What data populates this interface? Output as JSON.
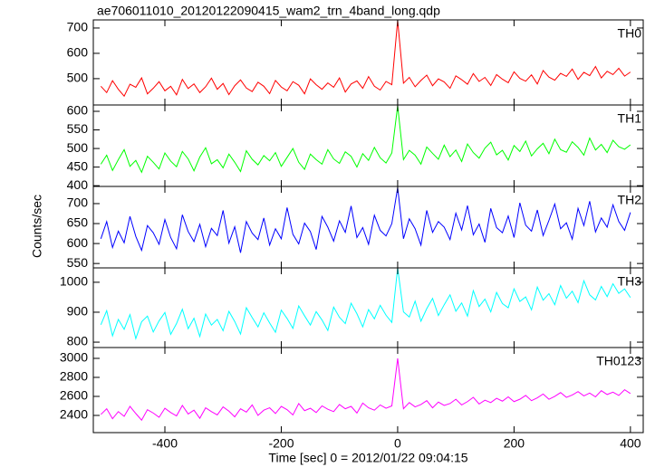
{
  "chart_data": [
    {
      "type": "line",
      "title": "ae706011010_20120122090415_wam2_trn_4band_long.qdp",
      "x": [
        -510,
        -500,
        -490,
        -480,
        -470,
        -460,
        -450,
        -440,
        -430,
        -420,
        -410,
        -400,
        -390,
        -380,
        -370,
        -360,
        -350,
        -340,
        -330,
        -320,
        -310,
        -300,
        -290,
        -280,
        -270,
        -260,
        -250,
        -240,
        -230,
        -220,
        -210,
        -200,
        -190,
        -180,
        -170,
        -160,
        -150,
        -140,
        -130,
        -120,
        -110,
        -100,
        -90,
        -80,
        -70,
        -60,
        -50,
        -40,
        -30,
        -20,
        -10,
        0,
        10,
        20,
        30,
        40,
        50,
        60,
        70,
        80,
        90,
        100,
        110,
        120,
        130,
        140,
        150,
        160,
        170,
        180,
        190,
        200,
        210,
        220,
        230,
        240,
        250,
        260,
        270,
        280,
        290,
        300,
        310,
        320,
        330,
        340,
        350,
        360,
        370,
        380,
        390,
        400
      ],
      "xlim": [
        -523,
        422
      ],
      "xticks": [
        -400,
        -200,
        0,
        200,
        400
      ],
      "ylim": [
        396,
        732
      ],
      "yticks": [
        500,
        600,
        700
      ],
      "series": [
        {
          "name": "TH0",
          "color": "#ff0000",
          "values": [
            470,
            445,
            492,
            458,
            431,
            478,
            466,
            503,
            440,
            462,
            488,
            452,
            470,
            436,
            497,
            461,
            479,
            445,
            468,
            502,
            458,
            481,
            437,
            472,
            495,
            463,
            449,
            486,
            470,
            441,
            493,
            467,
            452,
            488,
            474,
            440,
            499,
            476,
            458,
            483,
            466,
            503,
            447,
            479,
            491,
            462,
            508,
            470,
            455,
            489,
            476,
            730,
            482,
            505,
            468,
            493,
            514,
            472,
            499,
            487,
            462,
            511,
            496,
            478,
            520,
            489,
            505,
            473,
            516,
            498,
            484,
            527,
            501,
            490,
            515,
            479,
            532,
            506,
            494,
            521,
            509,
            538,
            497,
            525,
            512,
            548,
            503,
            529,
            516,
            541,
            510,
            526
          ]
        }
      ]
    },
    {
      "type": "line",
      "x": [
        -510,
        -500,
        -490,
        -480,
        -470,
        -460,
        -450,
        -440,
        -430,
        -420,
        -410,
        -400,
        -390,
        -380,
        -370,
        -360,
        -350,
        -340,
        -330,
        -320,
        -310,
        -300,
        -290,
        -280,
        -270,
        -260,
        -250,
        -240,
        -230,
        -220,
        -210,
        -200,
        -190,
        -180,
        -170,
        -160,
        -150,
        -140,
        -130,
        -120,
        -110,
        -100,
        -90,
        -80,
        -70,
        -60,
        -50,
        -40,
        -30,
        -20,
        -10,
        0,
        10,
        20,
        30,
        40,
        50,
        60,
        70,
        80,
        90,
        100,
        110,
        120,
        130,
        140,
        150,
        160,
        170,
        180,
        190,
        200,
        210,
        220,
        230,
        240,
        250,
        260,
        270,
        280,
        290,
        300,
        310,
        320,
        330,
        340,
        350,
        360,
        370,
        380,
        390,
        400
      ],
      "xlim": [
        -523,
        422
      ],
      "xticks": [
        -400,
        -200,
        0,
        200,
        400
      ],
      "ylim": [
        398,
        617
      ],
      "yticks": [
        400,
        450,
        500,
        550,
        600
      ],
      "series": [
        {
          "name": "TH1",
          "color": "#00ff00",
          "values": [
            458,
            482,
            441,
            470,
            497,
            452,
            468,
            436,
            479,
            463,
            445,
            488,
            466,
            451,
            492,
            472,
            440,
            477,
            502,
            459,
            470,
            448,
            485,
            463,
            438,
            494,
            471,
            456,
            481,
            467,
            489,
            452,
            476,
            500,
            463,
            444,
            485,
            470,
            458,
            497,
            472,
            460,
            491,
            479,
            450,
            486,
            468,
            503,
            475,
            461,
            488,
            615,
            470,
            495,
            482,
            458,
            504,
            487,
            471,
            509,
            478,
            496,
            465,
            512,
            489,
            474,
            501,
            517,
            483,
            495,
            469,
            508,
            492,
            520,
            480,
            499,
            514,
            486,
            525,
            497,
            490,
            518,
            503,
            482,
            528,
            496,
            511,
            489,
            522,
            505,
            498,
            510
          ]
        }
      ]
    },
    {
      "type": "line",
      "ylabel": "Counts/sec",
      "x": [
        -510,
        -500,
        -490,
        -480,
        -470,
        -460,
        -450,
        -440,
        -430,
        -420,
        -410,
        -400,
        -390,
        -380,
        -370,
        -360,
        -350,
        -340,
        -330,
        -320,
        -310,
        -300,
        -290,
        -280,
        -270,
        -260,
        -250,
        -240,
        -230,
        -220,
        -210,
        -200,
        -190,
        -180,
        -170,
        -160,
        -150,
        -140,
        -130,
        -120,
        -110,
        -100,
        -90,
        -80,
        -70,
        -60,
        -50,
        -40,
        -30,
        -20,
        -10,
        0,
        10,
        20,
        30,
        40,
        50,
        60,
        70,
        80,
        90,
        100,
        110,
        120,
        130,
        140,
        150,
        160,
        170,
        180,
        190,
        200,
        210,
        220,
        230,
        240,
        250,
        260,
        270,
        280,
        290,
        300,
        310,
        320,
        330,
        340,
        350,
        360,
        370,
        380,
        390,
        400
      ],
      "xlim": [
        -523,
        422
      ],
      "xticks": [
        -400,
        -200,
        0,
        200,
        400
      ],
      "ylim": [
        539,
        743
      ],
      "yticks": [
        550,
        600,
        650,
        700
      ],
      "series": [
        {
          "name": "TH2",
          "color": "#0000ff",
          "values": [
            612,
            655,
            590,
            631,
            602,
            668,
            618,
            583,
            645,
            627,
            598,
            660,
            615,
            587,
            672,
            630,
            605,
            648,
            592,
            638,
            620,
            683,
            601,
            642,
            577,
            655,
            626,
            610,
            664,
            596,
            637,
            612,
            690,
            623,
            599,
            651,
            630,
            585,
            668,
            641,
            606,
            657,
            628,
            694,
            615,
            640,
            598,
            671,
            633,
            619,
            650,
            740,
            612,
            662,
            637,
            596,
            683,
            628,
            655,
            641,
            610,
            676,
            634,
            695,
            622,
            649,
            603,
            688,
            640,
            627,
            669,
            615,
            702,
            646,
            631,
            684,
            620,
            658,
            699,
            637,
            652,
            611,
            688,
            645,
            706,
            629,
            664,
            641,
            697,
            655,
            633,
            678
          ]
        }
      ]
    },
    {
      "type": "line",
      "x": [
        -510,
        -500,
        -490,
        -480,
        -470,
        -460,
        -450,
        -440,
        -430,
        -420,
        -410,
        -400,
        -390,
        -380,
        -370,
        -360,
        -350,
        -340,
        -330,
        -320,
        -310,
        -300,
        -290,
        -280,
        -270,
        -260,
        -250,
        -240,
        -230,
        -220,
        -210,
        -200,
        -190,
        -180,
        -170,
        -160,
        -150,
        -140,
        -130,
        -120,
        -110,
        -100,
        -90,
        -80,
        -70,
        -60,
        -50,
        -40,
        -30,
        -20,
        -10,
        0,
        10,
        20,
        30,
        40,
        50,
        60,
        70,
        80,
        90,
        100,
        110,
        120,
        130,
        140,
        150,
        160,
        170,
        180,
        190,
        200,
        210,
        220,
        230,
        240,
        250,
        260,
        270,
        280,
        290,
        300,
        310,
        320,
        330,
        340,
        350,
        360,
        370,
        380,
        390,
        400
      ],
      "xlim": [
        -523,
        422
      ],
      "xticks": [
        -400,
        -200,
        0,
        200,
        400
      ],
      "ylim": [
        782,
        1048
      ],
      "yticks": [
        800,
        900,
        1000
      ],
      "series": [
        {
          "name": "TH3",
          "color": "#00ffff",
          "values": [
            858,
            905,
            821,
            876,
            843,
            892,
            812,
            868,
            887,
            834,
            871,
            899,
            826,
            862,
            910,
            845,
            880,
            819,
            894,
            857,
            876,
            838,
            903,
            869,
            827,
            915,
            882,
            851,
            898,
            864,
            833,
            907,
            879,
            846,
            921,
            888,
            857,
            902,
            874,
            839,
            917,
            883,
            862,
            930,
            895,
            851,
            909,
            878,
            923,
            890,
            866,
            1048,
            901,
            884,
            937,
            870,
            912,
            946,
            889,
            925,
            958,
            903,
            931,
            887,
            972,
            919,
            944,
            901,
            966,
            929,
            915,
            978,
            936,
            951,
            908,
            984,
            940,
            962,
            925,
            989,
            947,
            970,
            932,
            1005,
            958,
            941,
            986,
            952,
            995,
            963,
            978,
            949
          ]
        }
      ]
    },
    {
      "type": "line",
      "xlabel": "Time [sec] 0 = 2012/01/22 09:04:15",
      "x": [
        -510,
        -500,
        -490,
        -480,
        -470,
        -460,
        -450,
        -440,
        -430,
        -420,
        -410,
        -400,
        -390,
        -380,
        -370,
        -360,
        -350,
        -340,
        -330,
        -320,
        -310,
        -300,
        -290,
        -280,
        -270,
        -260,
        -250,
        -240,
        -230,
        -220,
        -210,
        -200,
        -190,
        -180,
        -170,
        -160,
        -150,
        -140,
        -130,
        -120,
        -110,
        -100,
        -90,
        -80,
        -70,
        -60,
        -50,
        -40,
        -30,
        -20,
        -10,
        0,
        10,
        20,
        30,
        40,
        50,
        60,
        70,
        80,
        90,
        100,
        110,
        120,
        130,
        140,
        150,
        160,
        170,
        180,
        190,
        200,
        210,
        220,
        230,
        240,
        250,
        260,
        270,
        280,
        290,
        300,
        310,
        320,
        330,
        340,
        350,
        360,
        370,
        380,
        390,
        400
      ],
      "xlim": [
        -523,
        422
      ],
      "xticks": [
        -400,
        -200,
        0,
        200,
        400
      ],
      "ylim": [
        2219,
        3114
      ],
      "yticks": [
        2400,
        2600,
        2800,
        3000
      ],
      "series": [
        {
          "name": "TH0123",
          "color": "#ff00ff",
          "values": [
            2410,
            2470,
            2365,
            2440,
            2390,
            2495,
            2420,
            2350,
            2460,
            2425,
            2380,
            2475,
            2430,
            2395,
            2505,
            2415,
            2455,
            2370,
            2480,
            2440,
            2405,
            2490,
            2445,
            2385,
            2470,
            2435,
            2510,
            2400,
            2455,
            2480,
            2420,
            2495,
            2460,
            2405,
            2525,
            2450,
            2475,
            2430,
            2500,
            2465,
            2440,
            2515,
            2470,
            2495,
            2425,
            2530,
            2480,
            2455,
            2510,
            2475,
            2500,
            3000,
            2470,
            2535,
            2490,
            2515,
            2555,
            2480,
            2540,
            2505,
            2525,
            2570,
            2510,
            2545,
            2590,
            2520,
            2560,
            2535,
            2580,
            2550,
            2595,
            2545,
            2570,
            2610,
            2555,
            2585,
            2625,
            2570,
            2600,
            2640,
            2590,
            2615,
            2650,
            2605,
            2635,
            2595,
            2660,
            2620,
            2645,
            2610,
            2670,
            2630
          ]
        }
      ]
    }
  ]
}
